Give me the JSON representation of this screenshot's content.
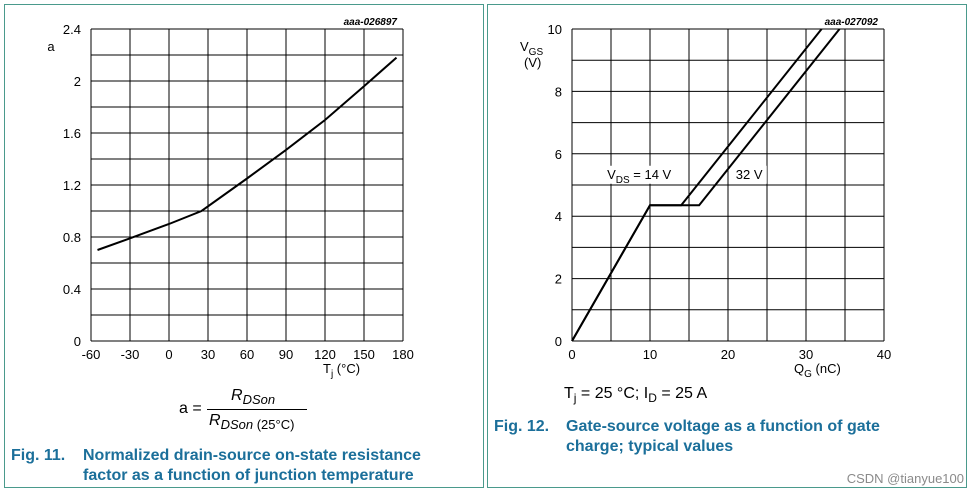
{
  "chart_data": [
    {
      "type": "line",
      "id_ref": "aaa-026897",
      "ylabel": "a",
      "xlabel_main": "T",
      "xlabel_sub": "j",
      "xlabel_unit": " (°C)",
      "xlim": [
        -60,
        180
      ],
      "ylim": [
        0,
        2.4
      ],
      "xticks": [
        -60,
        -30,
        0,
        30,
        60,
        90,
        120,
        150,
        180
      ],
      "yticks": [
        0,
        0.4,
        0.8,
        1.2,
        1.6,
        2,
        2.4
      ],
      "ytick_labels": [
        "0",
        "0.4",
        "0.8",
        "1.2",
        "1.6",
        "2",
        "2.4"
      ],
      "grid": true,
      "series": [
        {
          "x": [
            -55,
            -30,
            0,
            25,
            60,
            90,
            120,
            150,
            175
          ],
          "y": [
            0.7,
            0.79,
            0.9,
            1.0,
            1.25,
            1.47,
            1.7,
            1.96,
            2.18
          ]
        }
      ],
      "formula": {
        "lhs": "a =",
        "num": "R",
        "num_sub": "DSon",
        "den": "R",
        "den_sub": "DSon",
        "den_paren": "(25°C)"
      },
      "caption_label": "Fig. 11.",
      "caption_lines": [
        "Normalized drain-source on-state resistance",
        "factor as a function of junction temperature"
      ]
    },
    {
      "type": "line",
      "id_ref": "aaa-027092",
      "ylabel_main": "V",
      "ylabel_sub": "GS",
      "ylabel_unit": "(V)",
      "xlabel_main": "Q",
      "xlabel_sub": "G",
      "xlabel_unit": " (nC)",
      "xlim": [
        0,
        40
      ],
      "ylim": [
        0,
        10
      ],
      "xticks": [
        0,
        10,
        20,
        30,
        40
      ],
      "yticks": [
        0,
        2,
        4,
        6,
        8,
        10
      ],
      "grid": true,
      "series": [
        {
          "name": "14 V",
          "x": [
            0,
            10,
            14,
            32
          ],
          "y": [
            0,
            4.35,
            4.35,
            10
          ]
        },
        {
          "name": "32 V",
          "x": [
            0,
            10,
            16.3,
            34.3
          ],
          "y": [
            0,
            4.35,
            4.35,
            10
          ]
        }
      ],
      "annotations": [
        {
          "main": "V",
          "sub": "DS",
          "rest": " = 14 V",
          "x": 4.5,
          "y": 5.2
        },
        {
          "main": "32 V",
          "sub": "",
          "rest": "",
          "x": 21,
          "y": 5.2
        }
      ],
      "conditions": {
        "t_main": "T",
        "t_sub": "j",
        "t_rest": " = 25 °C; I",
        "i_sub": "D",
        "i_rest": " = 25 A"
      },
      "caption_label": "Fig. 12.",
      "caption_lines": [
        "Gate-source voltage as a function of gate",
        "charge; typical values"
      ]
    }
  ],
  "watermark": "CSDN @tianyue100"
}
